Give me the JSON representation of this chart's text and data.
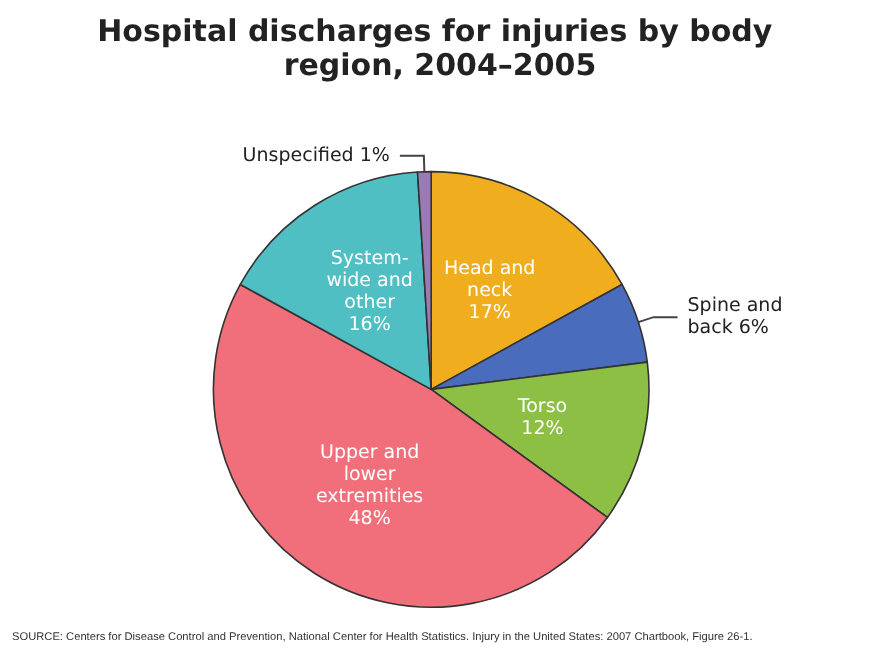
{
  "chart_data": {
    "type": "pie",
    "title": "Hospital discharges for injuries by body region, 2004–2005",
    "categories": [
      "Head and neck",
      "Spine and back",
      "Torso",
      "Upper and lower extremities",
      "System-wide and other",
      "Unspecified"
    ],
    "values": [
      17,
      6,
      12,
      48,
      16,
      1
    ],
    "value_labels": [
      "17%",
      "6%",
      "12%",
      "48%",
      "16%",
      "1%"
    ],
    "colors": [
      "#f0ae1e",
      "#4a6cbd",
      "#8dbf45",
      "#f06f7b",
      "#4fbfc3",
      "#9b7bb5"
    ],
    "legend": false,
    "annotations": [
      "SOURCE: Centers for Disease Control and Prevention, National Center for Health Statistics. Injury in the United States: 2007 Chartbook, Figure 26-1."
    ]
  }
}
